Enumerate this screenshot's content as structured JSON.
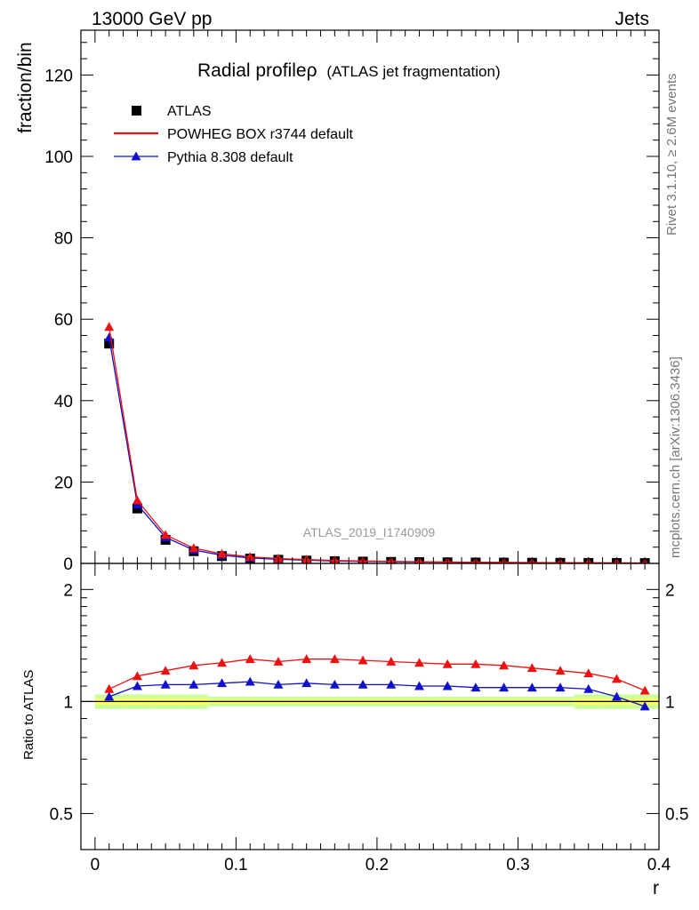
{
  "header": {
    "energy_label": "13000 GeV pp",
    "category_label": "Jets"
  },
  "side_labels": {
    "rivet": "Rivet 3.1.10, ≥ 2.6M events",
    "mcplots": "mcplots.cern.ch [arXiv:1306.3436]"
  },
  "chart_data": {
    "type": "scatter",
    "title": "Radial profileρ",
    "subtitle": "(ATLAS jet fragmentation)",
    "watermark": "ATLAS_2019_I1740909",
    "xlabel": "r",
    "ylabel": "fraction/bin",
    "ratio_ylabel": "Ratio to ATLAS",
    "xlim": [
      -0.01,
      0.4
    ],
    "ylim": [
      0,
      131
    ],
    "ratio_ylim": [
      0.4,
      2.35
    ],
    "ratio_log_scale": true,
    "x_ticks": [
      "0",
      "0.1",
      "0.2",
      "0.3",
      "0.4"
    ],
    "y_ticks": [
      "0",
      "20",
      "40",
      "60",
      "80",
      "100",
      "120"
    ],
    "ratio_ticks": [
      "0.5",
      "1",
      "2"
    ],
    "legend_position": "top-left",
    "x": [
      0.01,
      0.03,
      0.05,
      0.07,
      0.09,
      0.11,
      0.13,
      0.15,
      0.17,
      0.19,
      0.21,
      0.23,
      0.25,
      0.27,
      0.29,
      0.31,
      0.33,
      0.35,
      0.37,
      0.39
    ],
    "series": [
      {
        "name": "ATLAS",
        "style": "square-markers",
        "color": "#000000",
        "values": [
          54.0,
          13.5,
          5.8,
          3.0,
          1.8,
          1.2,
          0.9,
          0.7,
          0.55,
          0.45,
          0.38,
          0.32,
          0.27,
          0.23,
          0.2,
          0.17,
          0.15,
          0.13,
          0.11,
          0.09
        ],
        "ratio": [
          1,
          1,
          1,
          1,
          1,
          1,
          1,
          1,
          1,
          1,
          1,
          1,
          1,
          1,
          1,
          1,
          1,
          1,
          1,
          1
        ]
      },
      {
        "name": "POWHEG BOX r3744 default",
        "style": "line-small-markers",
        "color": "#ee1111",
        "values": [
          58.1,
          15.5,
          7.0,
          3.75,
          2.35,
          1.6,
          1.2,
          0.94,
          0.73,
          0.6,
          0.5,
          0.42,
          0.35,
          0.3,
          0.26,
          0.22,
          0.19,
          0.16,
          0.13,
          0.1
        ],
        "ratio": [
          1.08,
          1.17,
          1.21,
          1.25,
          1.27,
          1.3,
          1.28,
          1.3,
          1.3,
          1.29,
          1.28,
          1.27,
          1.26,
          1.26,
          1.25,
          1.23,
          1.21,
          1.19,
          1.15,
          1.07
        ]
      },
      {
        "name": "Pythia 8.308 default",
        "style": "line-triangle-markers",
        "color": "#1111cc",
        "values": [
          55.5,
          14.5,
          6.4,
          3.3,
          2.0,
          1.35,
          1.0,
          0.78,
          0.6,
          0.5,
          0.42,
          0.35,
          0.3,
          0.25,
          0.22,
          0.19,
          0.16,
          0.14,
          0.115,
          0.087
        ],
        "ratio": [
          1.03,
          1.1,
          1.11,
          1.11,
          1.12,
          1.13,
          1.11,
          1.12,
          1.11,
          1.11,
          1.11,
          1.1,
          1.1,
          1.09,
          1.09,
          1.09,
          1.09,
          1.08,
          1.03,
          0.97
        ]
      }
    ],
    "band_colors": {
      "inner": "#ffff66",
      "outer": "#ccff99"
    }
  }
}
